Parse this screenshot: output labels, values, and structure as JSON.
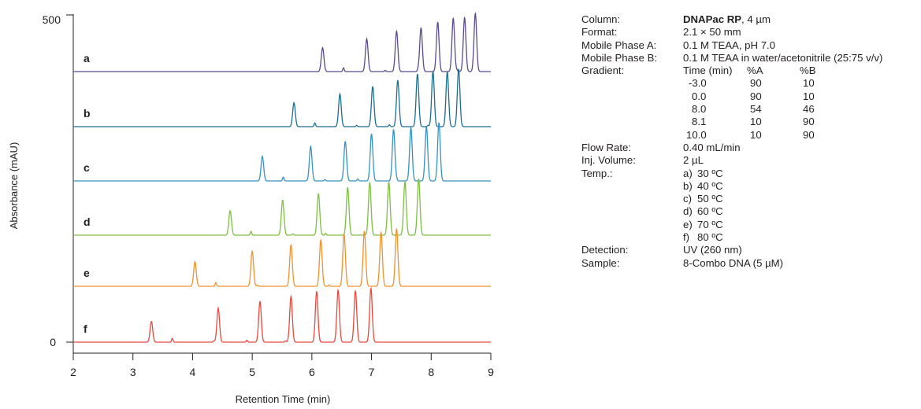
{
  "chart_data": {
    "type": "line",
    "xlabel": "Retention Time (min)",
    "ylabel": "Absorbance (mAU)",
    "xlim": [
      2,
      9
    ],
    "x_ticks": [
      "2",
      "3",
      "4",
      "5",
      "6",
      "7",
      "8",
      "9"
    ],
    "y_ticks": [
      "0",
      "500"
    ],
    "baseline_noise_peaks": [
      0.06,
      0.02,
      0.03,
      0.02
    ],
    "series": [
      {
        "name": "a",
        "color": "#5b4a8f",
        "peaks": [
          [
            6.18,
            0.38
          ],
          [
            6.92,
            0.52
          ],
          [
            7.42,
            0.64
          ],
          [
            7.83,
            0.7
          ],
          [
            8.11,
            0.79
          ],
          [
            8.37,
            0.85
          ],
          [
            8.56,
            0.86
          ],
          [
            8.74,
            0.93
          ]
        ]
      },
      {
        "name": "b",
        "color": "#1c6e8f",
        "peaks": [
          [
            5.7,
            0.38
          ],
          [
            6.47,
            0.52
          ],
          [
            7.02,
            0.64
          ],
          [
            7.44,
            0.74
          ],
          [
            7.77,
            0.84
          ],
          [
            8.03,
            0.88
          ],
          [
            8.27,
            0.87
          ],
          [
            8.46,
            0.92
          ]
        ]
      },
      {
        "name": "c",
        "color": "#3592c7",
        "peaks": [
          [
            5.17,
            0.39
          ],
          [
            5.98,
            0.55
          ],
          [
            6.56,
            0.63
          ],
          [
            7.0,
            0.75
          ],
          [
            7.37,
            0.82
          ],
          [
            7.66,
            0.85
          ],
          [
            7.92,
            0.86
          ],
          [
            8.13,
            0.93
          ]
        ]
      },
      {
        "name": "d",
        "color": "#7dbf41",
        "peaks": [
          [
            4.63,
            0.39
          ],
          [
            5.51,
            0.56
          ],
          [
            6.11,
            0.66
          ],
          [
            6.6,
            0.76
          ],
          [
            6.97,
            0.84
          ],
          [
            7.29,
            0.85
          ],
          [
            7.56,
            0.85
          ],
          [
            7.79,
            0.9
          ]
        ]
      },
      {
        "name": "e",
        "color": "#f1912f",
        "peaks": [
          [
            4.04,
            0.39
          ],
          [
            5.0,
            0.56
          ],
          [
            5.65,
            0.64
          ],
          [
            6.15,
            0.74
          ],
          [
            6.54,
            0.83
          ],
          [
            6.88,
            0.88
          ],
          [
            7.16,
            0.86
          ],
          [
            7.42,
            0.92
          ]
        ]
      },
      {
        "name": "f",
        "color": "#e8493e",
        "peaks": [
          [
            3.31,
            0.33
          ],
          [
            4.43,
            0.54
          ],
          [
            5.13,
            0.65
          ],
          [
            5.65,
            0.73
          ],
          [
            6.08,
            0.81
          ],
          [
            6.44,
            0.83
          ],
          [
            6.73,
            0.82
          ],
          [
            6.99,
            0.86
          ]
        ]
      }
    ]
  },
  "params": {
    "column_label": "Column:",
    "column_name": "DNAPac RP",
    "column_rest": ", 4 µm",
    "format_label": "Format:",
    "format_value": "2.1 × 50 mm",
    "mpa_label": "Mobile Phase A:",
    "mpa_value": "0.1 M TEAA, pH 7.0",
    "mpb_label": "Mobile Phase B:",
    "mpb_value": "0.1 M TEAA in water/acetonitrile (25:75 v/v)",
    "gradient_label": "Gradient:",
    "gradient_headers": [
      "Time (min)",
      "%A",
      "%B"
    ],
    "gradient_rows": [
      [
        "-3.0",
        "90",
        "10"
      ],
      [
        "0.0",
        "90",
        "10"
      ],
      [
        "8.0",
        "54",
        "46"
      ],
      [
        "8.1",
        "10",
        "90"
      ],
      [
        "10.0",
        "10",
        "90"
      ]
    ],
    "flow_label": "Flow Rate:",
    "flow_value": "0.40 mL/min",
    "inj_label": "Inj. Volume:",
    "inj_value": "2 µL",
    "temp_label": "Temp.:",
    "temps": [
      {
        "letter": "a)",
        "value": "30 ºC"
      },
      {
        "letter": "b)",
        "value": "40 ºC"
      },
      {
        "letter": "c)",
        "value": "50 ºC"
      },
      {
        "letter": "d)",
        "value": "60 ºC"
      },
      {
        "letter": "e)",
        "value": "70 ºC"
      },
      {
        "letter": "f)",
        "value": "80 ºC"
      }
    ],
    "detection_label": "Detection:",
    "detection_value": "UV (260 nm)",
    "sample_label": "Sample:",
    "sample_value": "8-Combo DNA (5 µM)"
  }
}
